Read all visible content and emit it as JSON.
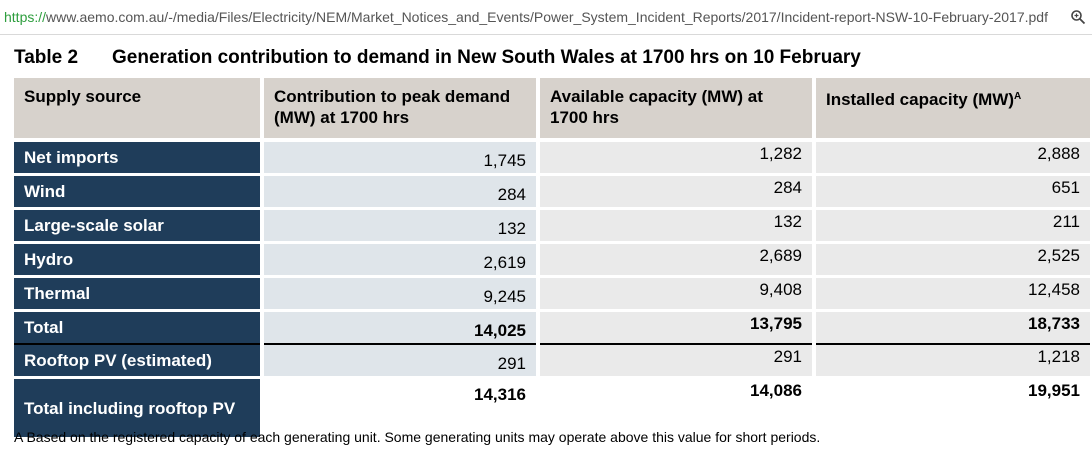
{
  "browser": {
    "url_scheme": "https://",
    "url_rest": "www.aemo.com.au/-/media/Files/Electricity/NEM/Market_Notices_and_Events/Power_System_Incident_Reports/2017/Incident-report-NSW-10-February-2017.pdf",
    "zoom_icon": "magnifier-icon"
  },
  "title": {
    "number": "Table 2",
    "text": "Generation contribution to demand in New South Wales at 1700 hrs on 10 February"
  },
  "table": {
    "headers": [
      "Supply source",
      "Contribution to peak demand (MW) at 1700 hrs",
      "Available capacity (MW) at 1700 hrs",
      "Installed capacity (MW)"
    ],
    "header_superscript": "A",
    "rows": [
      {
        "source": "Net imports",
        "contribution": "1,745",
        "available": "1,282",
        "installed": "2,888"
      },
      {
        "source": "Wind",
        "contribution": "284",
        "available": "284",
        "installed": "651"
      },
      {
        "source": "Large-scale solar",
        "contribution": "132",
        "available": "132",
        "installed": "211"
      },
      {
        "source": "Hydro",
        "contribution": "2,619",
        "available": "2,689",
        "installed": "2,525"
      },
      {
        "source": "Thermal",
        "contribution": "9,245",
        "available": "9,408",
        "installed": "12,458"
      },
      {
        "source": "Total",
        "contribution": "14,025",
        "available": "13,795",
        "installed": "18,733"
      },
      {
        "source": "Rooftop PV (estimated)",
        "contribution": "291",
        "available": "291",
        "installed": "1,218"
      },
      {
        "source": "Total including rooftop PV",
        "contribution": "14,316",
        "available": "14,086",
        "installed": "19,951"
      }
    ]
  },
  "footnote": "A Based on the registered capacity of each generating unit. Some generating units may operate above this value for short periods."
}
